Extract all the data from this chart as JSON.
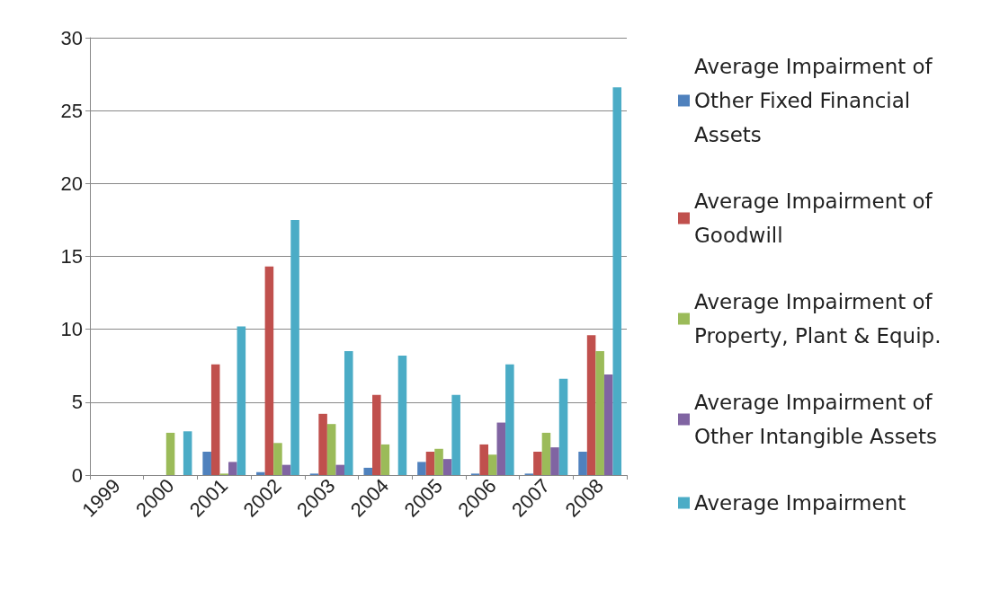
{
  "chart_data": {
    "type": "bar",
    "categories": [
      "1999",
      "2000",
      "2001",
      "2002",
      "2003",
      "2004",
      "2005",
      "2006",
      "2007",
      "2008"
    ],
    "series": [
      {
        "name": "Average Impairment of Other Fixed Financial Assets",
        "color": "#4f81bd",
        "values": [
          0,
          0,
          1.6,
          0.2,
          0.1,
          0.5,
          0.9,
          0.1,
          0.1,
          1.6
        ]
      },
      {
        "name": "Average Impairment of Goodwill",
        "color": "#c0504d",
        "values": [
          0,
          0,
          7.6,
          14.3,
          4.2,
          5.5,
          1.6,
          2.1,
          1.6,
          9.6
        ]
      },
      {
        "name": "Average Impairment of Property, Plant & Equip.",
        "color": "#9bbb59",
        "values": [
          0,
          2.9,
          0.1,
          2.2,
          3.5,
          2.1,
          1.8,
          1.4,
          2.9,
          8.5
        ]
      },
      {
        "name": "Average Impairment of Other Intangible Assets",
        "color": "#8064a2",
        "values": [
          0,
          0,
          0.9,
          0.7,
          0.7,
          0,
          1.1,
          3.6,
          1.9,
          6.9
        ]
      },
      {
        "name": "Average Impairment",
        "color": "#4bacc6",
        "values": [
          0,
          3.0,
          10.2,
          17.5,
          8.5,
          8.2,
          5.5,
          7.6,
          6.6,
          26.6
        ]
      }
    ],
    "ylim": [
      0,
      30
    ],
    "yticks": [
      0,
      5,
      10,
      15,
      20,
      25,
      30
    ],
    "grid": "y",
    "legend": "right"
  }
}
